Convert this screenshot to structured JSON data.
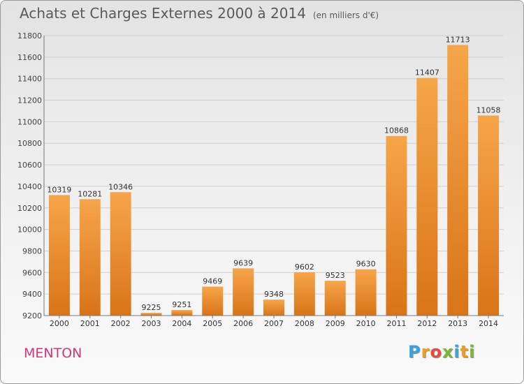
{
  "title": "Achats et Charges Externes 2000 à 2014",
  "unit": "(en milliers d'€)",
  "city": "MENTON",
  "logo": {
    "letters": [
      "P",
      "r",
      "o",
      "x",
      "i",
      "t",
      "i"
    ],
    "colors": [
      "#3aa3dc",
      "#f39a1f",
      "#e74b3b",
      "#78b833",
      "#3aa3dc",
      "#f39a1f",
      "#78b833"
    ]
  },
  "colors": {
    "bar_top": "#f7a54a",
    "bar_bottom": "#d97418",
    "city": "#d6337a"
  },
  "chart_data": {
    "type": "bar",
    "title": "Achats et Charges Externes 2000 à 2014",
    "xlabel": "",
    "ylabel": "",
    "categories": [
      "2000",
      "2001",
      "2002",
      "2003",
      "2004",
      "2005",
      "2006",
      "2007",
      "2008",
      "2009",
      "2010",
      "2011",
      "2012",
      "2013",
      "2014"
    ],
    "values": [
      10319,
      10281,
      10346,
      9225,
      9251,
      9469,
      9639,
      9348,
      9602,
      9523,
      9630,
      10868,
      11407,
      11713,
      11058
    ],
    "data_labels": [
      "10319",
      "10281",
      "10346",
      "9225",
      "9251",
      "9469",
      "9639",
      "9348",
      "9602",
      "9523",
      "9630",
      "10868",
      "11407",
      "11713",
      "11058"
    ],
    "ylim": [
      9200,
      11800
    ],
    "yticks": [
      9200,
      9400,
      9600,
      9800,
      10000,
      10200,
      10400,
      10600,
      10800,
      11000,
      11200,
      11400,
      11600,
      11800
    ],
    "grid": true,
    "legend": "none"
  }
}
